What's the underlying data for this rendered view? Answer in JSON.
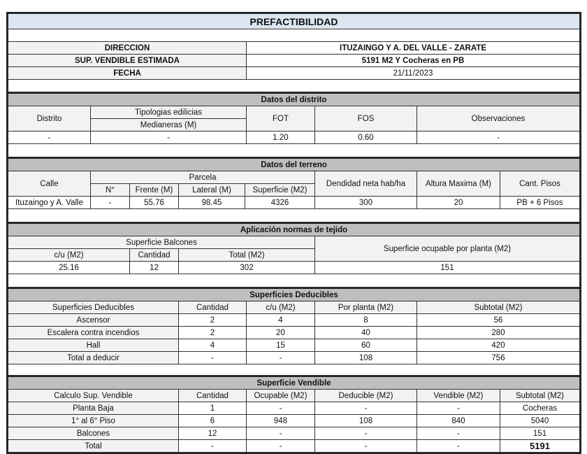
{
  "title": "PREFACTIBILIDAD",
  "info": [
    {
      "label": "DIRECCION",
      "value": "ITUZAINGO Y A. DEL VALLE - ZARATE"
    },
    {
      "label": "SUP. VENDIBLE ESTIMADA",
      "value": "5191 M2 Y Cocheras en PB"
    },
    {
      "label": "FECHA",
      "value": "21/11/2023"
    }
  ],
  "distrito": {
    "section": "Datos del distrito",
    "headers": {
      "distrito": "Distrito",
      "tipologias": "Tipologias edilicias",
      "medianeras": "Medianeras (M)",
      "fot": "FOT",
      "fos": "FOS",
      "observaciones": "Observaciones"
    },
    "row": {
      "distrito": "-",
      "medianeras": "-",
      "fot": "1.20",
      "fos": "0.60",
      "observaciones": "-"
    }
  },
  "terreno": {
    "section": "Datos del terreno",
    "headers": {
      "calle": "Calle",
      "parcela": "Parcela",
      "numero": "N°",
      "frente": "Frente (M)",
      "lateral": "Lateral (M)",
      "superficie": "Superficie (M2)",
      "densidad": "Dendidad neta hab/ha",
      "altura": "Altura Maxima (M)",
      "pisos": "Cant. Pisos"
    },
    "row": {
      "calle": "Ituzaingo y A. Valle",
      "numero": "-",
      "frente": "55.76",
      "lateral": "98.45",
      "superficie": "4326",
      "densidad": "300",
      "altura": "20",
      "pisos": "PB + 6 Pisos"
    }
  },
  "tejido": {
    "section": "Aplicación normas de tejido",
    "headers": {
      "balcones": "Superficie Balcones",
      "cu": "c/u (M2)",
      "cantidad": "Cantidad",
      "total": "Total (M2)",
      "ocupable": "Superficie ocupable por planta (M2)"
    },
    "row": {
      "cu": "25.16",
      "cantidad": "12",
      "total": "302",
      "ocupable": "151"
    }
  },
  "deducibles": {
    "section": "Superficies Deducibles",
    "headers": [
      "Superficies Deducibles",
      "Cantidad",
      "c/u (M2)",
      "Por planta (M2)",
      "Subtotal (M2)"
    ],
    "rows": [
      [
        "Ascensor",
        "2",
        "4",
        "8",
        "56"
      ],
      [
        "Escalera contra incendios",
        "2",
        "20",
        "40",
        "280"
      ],
      [
        "Hall",
        "4",
        "15",
        "60",
        "420"
      ],
      [
        "Total a deducir",
        "-",
        "-",
        "108",
        "756"
      ]
    ]
  },
  "vendible": {
    "section": "Superficie Vendible",
    "headers": [
      "Calculo Sup. Vendible",
      "Cantidad",
      "Ocupable (M2)",
      "Deducible (M2)",
      "Vendible (M2)",
      "Subtotal (M2)"
    ],
    "rows": [
      [
        "Planta Baja",
        "1",
        "-",
        "-",
        "-",
        "Cocheras"
      ],
      [
        "1° al 6° Piso",
        "6",
        "948",
        "108",
        "840",
        "5040"
      ],
      [
        "Balcones",
        "12",
        "-",
        "-",
        "-",
        "151"
      ],
      [
        "Total",
        "-",
        "-",
        "-",
        "-",
        "5191"
      ]
    ]
  }
}
